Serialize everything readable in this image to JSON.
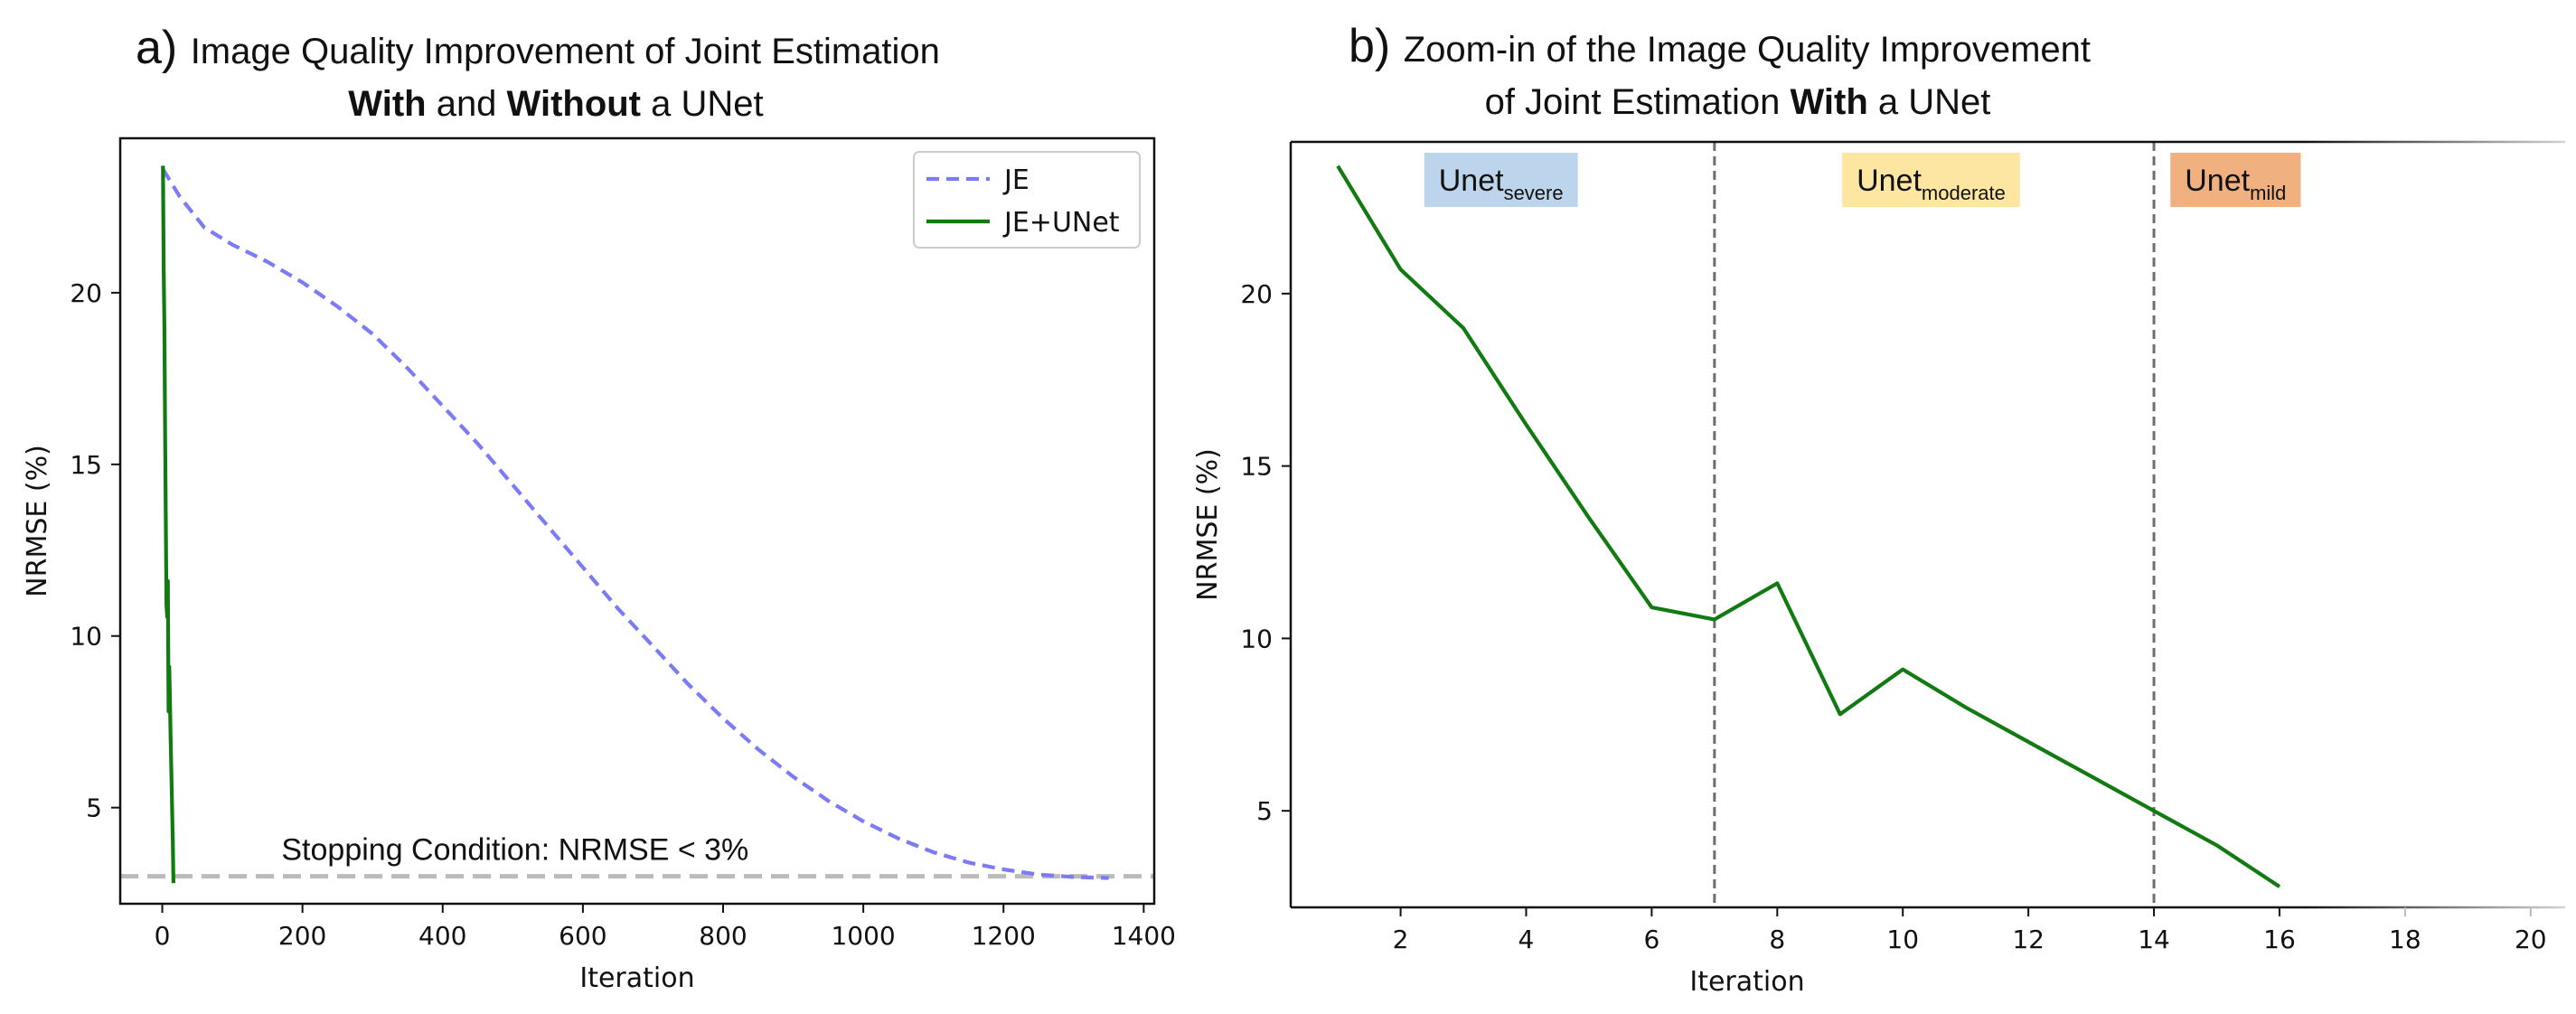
{
  "chart_data": [
    {
      "id": "a",
      "type": "line",
      "panel_letter": "a)",
      "title_line1": "Image Quality Improvement of Joint Estimation",
      "title_line2_parts": [
        {
          "text": "With",
          "bold": true
        },
        {
          "text": " and ",
          "bold": false
        },
        {
          "text": "Without",
          "bold": true
        },
        {
          "text": " a UNet",
          "bold": false
        }
      ],
      "xlabel": "Iteration",
      "ylabel": "NRMSE (%)",
      "xlim": [
        -60,
        1415
      ],
      "ylim": [
        2.2,
        24.5
      ],
      "xticks": [
        0,
        200,
        400,
        600,
        800,
        1000,
        1200,
        1400
      ],
      "yticks": [
        5,
        10,
        15,
        20
      ],
      "legend_position": "top-right",
      "series": [
        {
          "name": "JE",
          "color": "#7b7bf5",
          "dash": "dashed",
          "x": [
            1,
            25,
            60,
            100,
            150,
            200,
            250,
            300,
            350,
            400,
            450,
            500,
            550,
            600,
            650,
            700,
            750,
            800,
            850,
            900,
            950,
            1000,
            1050,
            1100,
            1150,
            1200,
            1250,
            1300,
            1350
          ],
          "y": [
            23.6,
            22.8,
            21.9,
            21.4,
            20.9,
            20.3,
            19.6,
            18.8,
            17.8,
            16.7,
            15.6,
            14.4,
            13.2,
            12.0,
            10.8,
            9.7,
            8.6,
            7.6,
            6.7,
            5.9,
            5.2,
            4.6,
            4.1,
            3.7,
            3.4,
            3.2,
            3.05,
            2.98,
            2.95
          ]
        },
        {
          "name": "JE+UNet",
          "color": "#117a11",
          "dash": "solid",
          "x": [
            1,
            2,
            3,
            4,
            5,
            6,
            7,
            8,
            9,
            10,
            11,
            12,
            13,
            14,
            15,
            16
          ],
          "y": [
            23.7,
            20.7,
            19.0,
            16.2,
            13.5,
            10.9,
            10.55,
            11.6,
            7.8,
            9.1,
            8.0,
            7.0,
            6.0,
            5.0,
            4.0,
            2.8
          ]
        }
      ],
      "reference_line": {
        "y": 3.0,
        "color": "#bbbbbb",
        "label": "Stopping Condition: NRMSE < 3%"
      }
    },
    {
      "id": "b",
      "type": "line",
      "panel_letter": "b)",
      "title_line1": "Zoom-in of the Image Quality Improvement",
      "title_line2_parts": [
        {
          "text": "of Joint Estimation ",
          "bold": false
        },
        {
          "text": "With",
          "bold": true
        },
        {
          "text": " a UNet",
          "bold": false
        }
      ],
      "xlabel": "Iteration",
      "ylabel": "NRMSE (%)",
      "xlim": [
        0.25,
        20.55
      ],
      "ylim": [
        2.2,
        24.4
      ],
      "xticks": [
        2,
        4,
        6,
        8,
        10,
        12,
        14,
        16,
        18,
        20
      ],
      "faded_xticks": [
        18,
        20
      ],
      "yticks": [
        5,
        10,
        15,
        20
      ],
      "vlines": [
        7,
        14
      ],
      "regions": [
        {
          "label": "Unet",
          "sub": "severe",
          "x_center": 3.6,
          "color": "#bcd5ec"
        },
        {
          "label": "Unet",
          "sub": "moderate",
          "x_center": 10.45,
          "color": "#fde6a2"
        },
        {
          "label": "Unet",
          "sub": "mild",
          "x_center": 15.3,
          "color": "#f1b07f"
        }
      ],
      "series": [
        {
          "name": "JE+UNet",
          "color": "#117a11",
          "dash": "solid",
          "x": [
            1,
            2,
            3,
            4,
            5,
            6,
            7,
            8,
            9,
            10,
            11,
            12,
            13,
            14,
            15,
            16
          ],
          "y": [
            23.7,
            20.7,
            19.0,
            16.2,
            13.5,
            10.9,
            10.55,
            11.6,
            7.8,
            9.1,
            8.0,
            7.0,
            6.0,
            5.0,
            4.0,
            2.8
          ]
        }
      ]
    }
  ]
}
